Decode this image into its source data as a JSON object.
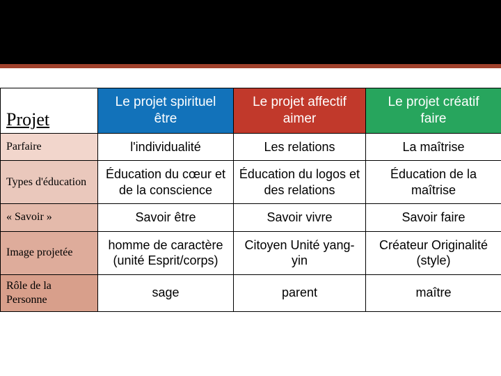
{
  "header_band_color": "#000000",
  "divider_color": "#a0412c",
  "table": {
    "corner_label": "Projet",
    "col_colors": [
      "#1272ba",
      "#c1392b",
      "#27a55d"
    ],
    "row_header_colors": [
      "#f2d6cc",
      "#eac8bc",
      "#e4baab",
      "#deac9b",
      "#d89f8b"
    ],
    "columns": [
      {
        "line1": "Le projet spirituel",
        "line2": "être"
      },
      {
        "line1": "Le projet affectif",
        "line2": "aimer"
      },
      {
        "line1": "Le projet créatif",
        "line2": "faire"
      }
    ],
    "rows": [
      {
        "label": "Parfaire",
        "cells": [
          "l'individualité",
          "Les relations",
          "La maîtrise"
        ]
      },
      {
        "label": "Types d'éducation",
        "cells": [
          "Éducation du cœur et de la conscience",
          "Éducation du logos et des relations",
          "Éducation de la maîtrise"
        ]
      },
      {
        "label": "« Savoir »",
        "cells": [
          "Savoir être",
          "Savoir vivre",
          "Savoir faire"
        ]
      },
      {
        "label": "Image projetée",
        "cells": [
          "homme de caractère (unité Esprit/corps)",
          "Citoyen Unité yang-yin",
          "Créateur Originalité (style)"
        ]
      },
      {
        "label": "Rôle de la Personne",
        "cells": [
          "sage",
          "parent",
          "maître"
        ]
      }
    ]
  }
}
